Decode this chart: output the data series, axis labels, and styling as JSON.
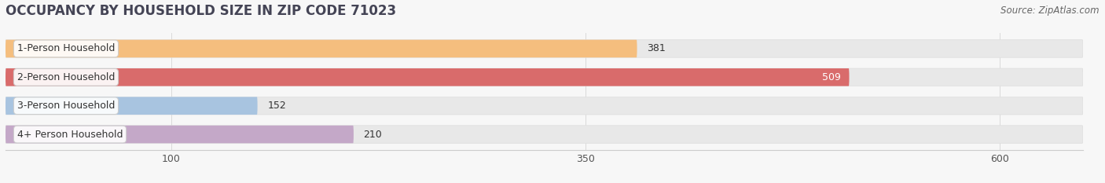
{
  "title": "OCCUPANCY BY HOUSEHOLD SIZE IN ZIP CODE 71023",
  "source": "Source: ZipAtlas.com",
  "categories": [
    "1-Person Household",
    "2-Person Household",
    "3-Person Household",
    "4+ Person Household"
  ],
  "values": [
    381,
    509,
    152,
    210
  ],
  "bar_colors": [
    "#F5BE7E",
    "#D96B6B",
    "#A8C4E0",
    "#C4A8C8"
  ],
  "track_color": "#E8E8E8",
  "label_colors": [
    "#444444",
    "#ffffff",
    "#444444",
    "#444444"
  ],
  "xlim_data": 650,
  "xlim_display": 650,
  "xticks": [
    100,
    350,
    600
  ],
  "bar_height": 0.62,
  "background_color": "#f7f7f7",
  "title_fontsize": 12,
  "source_fontsize": 8.5,
  "label_fontsize": 9,
  "value_fontsize": 9,
  "title_color": "#444455"
}
